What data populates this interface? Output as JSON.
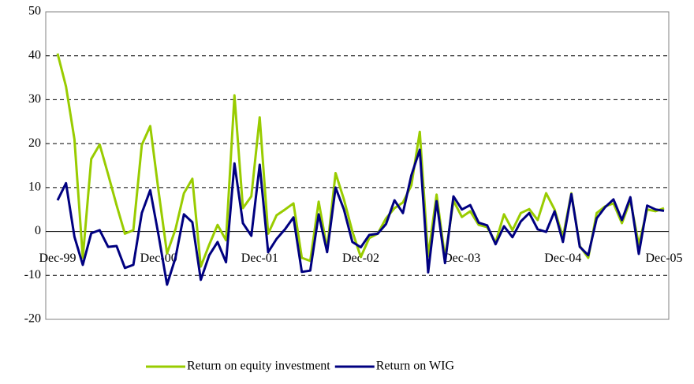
{
  "chart_data": {
    "type": "line",
    "categories": [
      "Dec-99",
      null,
      null,
      null,
      null,
      null,
      null,
      null,
      null,
      null,
      null,
      null,
      "Dec-00",
      null,
      null,
      null,
      null,
      null,
      null,
      null,
      null,
      null,
      null,
      null,
      "Dec-01",
      null,
      null,
      null,
      null,
      null,
      null,
      null,
      null,
      null,
      null,
      null,
      "Dec-02",
      null,
      null,
      null,
      null,
      null,
      null,
      null,
      null,
      null,
      null,
      null,
      "Dec-03",
      null,
      null,
      null,
      null,
      null,
      null,
      null,
      null,
      null,
      null,
      null,
      "Dec-04",
      null,
      null,
      null,
      null,
      null,
      null,
      null,
      null,
      null,
      null,
      null,
      "Dec-05"
    ],
    "series": [
      {
        "name": "Return on equity investment",
        "color": "#99cc00",
        "values": [
          40.5,
          33,
          21,
          -6,
          16.5,
          19.8,
          13,
          6,
          -0.5,
          0.3,
          19.7,
          24,
          9,
          -5,
          0.5,
          8.7,
          12,
          -8,
          -3,
          1.5,
          -2,
          31,
          5.3,
          8,
          26,
          -0.5,
          3.7,
          5,
          6.4,
          -6,
          -6.7,
          6.8,
          -4,
          13.3,
          7.3,
          0,
          -5.8,
          -1.5,
          -0.5,
          3,
          5.3,
          6.6,
          10.5,
          22.7,
          -5.7,
          8.4,
          -6,
          7,
          3.3,
          4.6,
          1.5,
          1,
          -2.5,
          3.9,
          0.3,
          4.2,
          5.1,
          2.6,
          8.7,
          5,
          -1.3,
          8.7,
          -3.3,
          -6,
          4.2,
          5.7,
          6.4,
          1.9,
          7.1,
          -3,
          5,
          4.6,
          5.3
        ]
      },
      {
        "name": "Return on WIG",
        "color": "#000080",
        "values": [
          7.1,
          11,
          -1.2,
          -7.6,
          -0.4,
          0.3,
          -3.5,
          -3.3,
          -8.3,
          -7.6,
          4.2,
          9.4,
          -1,
          -12.1,
          -6,
          3.9,
          2.1,
          -11,
          -5.4,
          -2.4,
          -7,
          15.5,
          1.9,
          -1,
          15.2,
          -4.7,
          -1.7,
          0.5,
          3.2,
          -9.2,
          -8.9,
          3.9,
          -4.7,
          10,
          5,
          -2.4,
          -3.6,
          -0.8,
          -0.5,
          1.7,
          7.1,
          4.2,
          12.8,
          18.6,
          -9.3,
          6.9,
          -7.2,
          8,
          5,
          6,
          2,
          1.4,
          -2.9,
          1.2,
          -1.3,
          2.3,
          4.2,
          0.5,
          -0.1,
          4.6,
          -2.4,
          8.5,
          -3.5,
          -5.4,
          3,
          5.5,
          7.3,
          2.6,
          7.8,
          -5.1,
          5.9,
          5,
          4.7
        ]
      }
    ],
    "ylim": [
      -20,
      50
    ],
    "yticks": [
      -20,
      -10,
      0,
      10,
      20,
      30,
      40,
      50
    ],
    "grid": true,
    "legend": "bottom"
  }
}
